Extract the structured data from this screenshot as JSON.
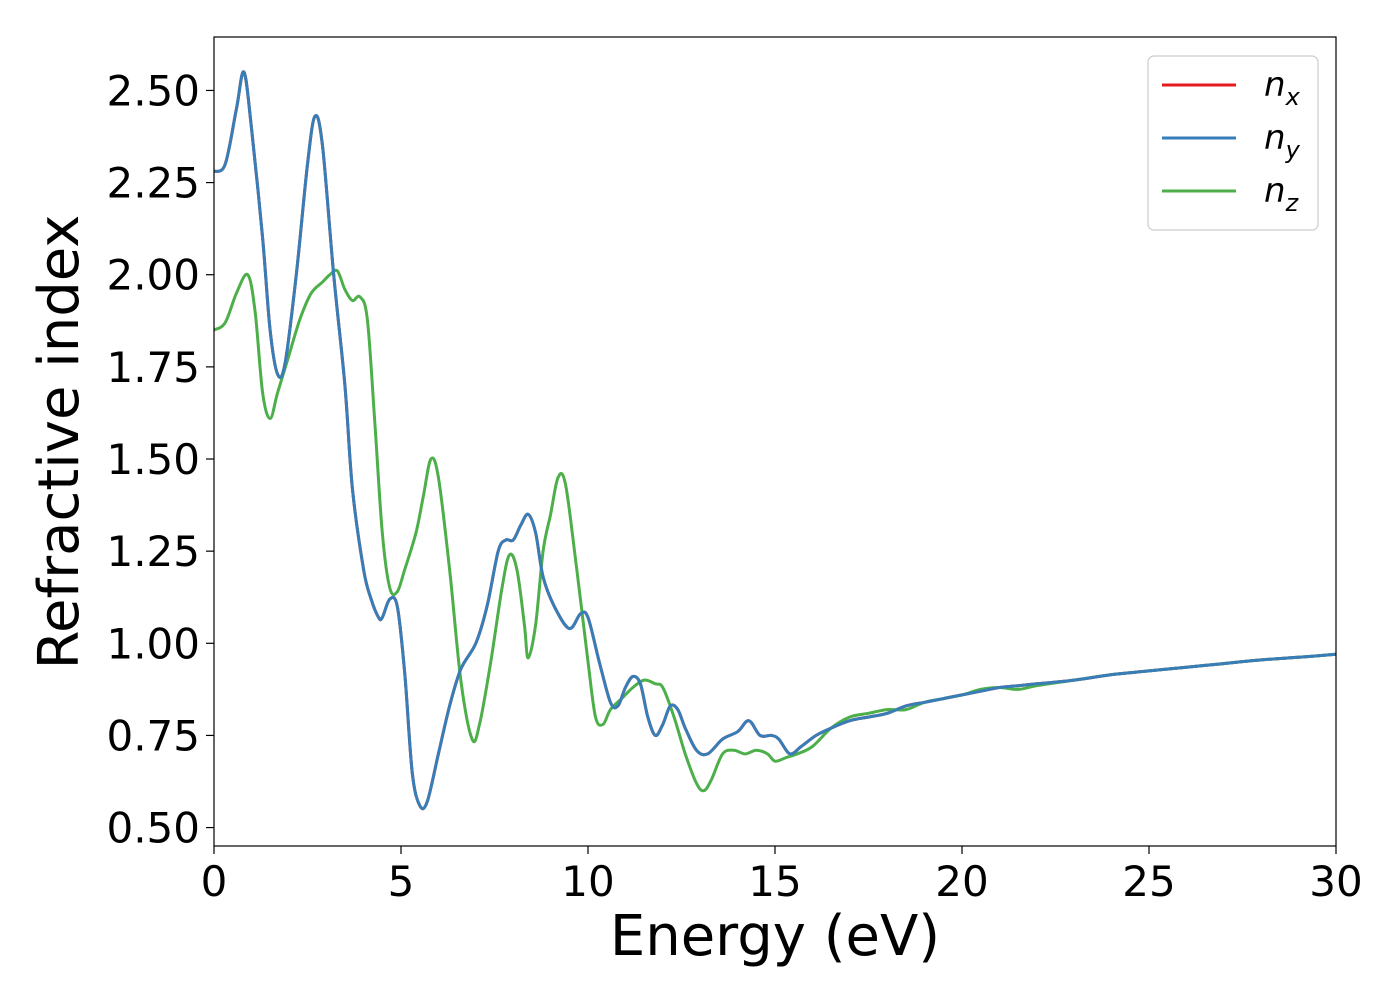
{
  "chart_data": {
    "type": "line",
    "xlabel": "Energy (eV)",
    "ylabel": "Refractive index",
    "xlim": [
      0,
      30
    ],
    "ylim": [
      0.45,
      2.645
    ],
    "xticks": [
      0,
      5,
      10,
      15,
      20,
      25,
      30
    ],
    "xtick_labels": [
      "0",
      "5",
      "10",
      "15",
      "20",
      "25",
      "30"
    ],
    "yticks": [
      0.5,
      0.75,
      1.0,
      1.25,
      1.5,
      1.75,
      2.0,
      2.25,
      2.5
    ],
    "ytick_labels": [
      "0.50",
      "0.75",
      "1.00",
      "1.25",
      "1.50",
      "1.75",
      "2.00",
      "2.25",
      "2.50"
    ],
    "grid": false,
    "legend_position": "top-right",
    "series": [
      {
        "name": "n_x",
        "legend_base": "n",
        "legend_sub": "x",
        "color": "#e41a1c",
        "points": [
          [
            0,
            2.28
          ],
          [
            0.3,
            2.3
          ],
          [
            0.6,
            2.45
          ],
          [
            0.8,
            2.55
          ],
          [
            1.0,
            2.4
          ],
          [
            1.3,
            2.1
          ],
          [
            1.5,
            1.85
          ],
          [
            1.7,
            1.73
          ],
          [
            1.9,
            1.76
          ],
          [
            2.2,
            2.0
          ],
          [
            2.5,
            2.3
          ],
          [
            2.7,
            2.43
          ],
          [
            2.9,
            2.35
          ],
          [
            3.2,
            2.0
          ],
          [
            3.5,
            1.7
          ],
          [
            3.7,
            1.42
          ],
          [
            4.0,
            1.2
          ],
          [
            4.2,
            1.12
          ],
          [
            4.4,
            1.07
          ],
          [
            4.5,
            1.07
          ],
          [
            4.7,
            1.12
          ],
          [
            4.9,
            1.1
          ],
          [
            5.1,
            0.92
          ],
          [
            5.3,
            0.65
          ],
          [
            5.5,
            0.56
          ],
          [
            5.7,
            0.57
          ],
          [
            6.0,
            0.7
          ],
          [
            6.3,
            0.83
          ],
          [
            6.6,
            0.93
          ],
          [
            7.0,
            1.0
          ],
          [
            7.3,
            1.1
          ],
          [
            7.6,
            1.25
          ],
          [
            7.8,
            1.28
          ],
          [
            8.0,
            1.28
          ],
          [
            8.2,
            1.32
          ],
          [
            8.4,
            1.35
          ],
          [
            8.6,
            1.3
          ],
          [
            8.8,
            1.18
          ],
          [
            9.1,
            1.1
          ],
          [
            9.5,
            1.04
          ],
          [
            9.8,
            1.08
          ],
          [
            10.0,
            1.07
          ],
          [
            10.3,
            0.95
          ],
          [
            10.6,
            0.84
          ],
          [
            10.8,
            0.83
          ],
          [
            11.0,
            0.88
          ],
          [
            11.2,
            0.91
          ],
          [
            11.4,
            0.89
          ],
          [
            11.6,
            0.8
          ],
          [
            11.8,
            0.75
          ],
          [
            12.0,
            0.78
          ],
          [
            12.2,
            0.83
          ],
          [
            12.4,
            0.82
          ],
          [
            12.6,
            0.77
          ],
          [
            12.9,
            0.71
          ],
          [
            13.2,
            0.7
          ],
          [
            13.6,
            0.74
          ],
          [
            14.0,
            0.76
          ],
          [
            14.3,
            0.79
          ],
          [
            14.6,
            0.75
          ],
          [
            14.9,
            0.75
          ],
          [
            15.1,
            0.74
          ],
          [
            15.4,
            0.7
          ],
          [
            15.7,
            0.72
          ],
          [
            16.1,
            0.75
          ],
          [
            16.5,
            0.77
          ],
          [
            17.0,
            0.79
          ],
          [
            17.5,
            0.8
          ],
          [
            18.0,
            0.81
          ],
          [
            18.5,
            0.83
          ],
          [
            19.0,
            0.84
          ],
          [
            19.5,
            0.85
          ],
          [
            20.0,
            0.86
          ],
          [
            20.5,
            0.87
          ],
          [
            21.0,
            0.88
          ],
          [
            21.5,
            0.885
          ],
          [
            22.0,
            0.89
          ],
          [
            23.0,
            0.9
          ],
          [
            24.0,
            0.915
          ],
          [
            25.0,
            0.925
          ],
          [
            26.0,
            0.935
          ],
          [
            27.0,
            0.945
          ],
          [
            28.0,
            0.955
          ],
          [
            29.0,
            0.962
          ],
          [
            30.0,
            0.97
          ]
        ]
      },
      {
        "name": "n_y",
        "legend_base": "n",
        "legend_sub": "y",
        "color": "#377eb8",
        "points": [
          [
            0,
            2.28
          ],
          [
            0.3,
            2.3
          ],
          [
            0.6,
            2.45
          ],
          [
            0.8,
            2.55
          ],
          [
            1.0,
            2.4
          ],
          [
            1.3,
            2.1
          ],
          [
            1.5,
            1.85
          ],
          [
            1.7,
            1.73
          ],
          [
            1.9,
            1.76
          ],
          [
            2.2,
            2.0
          ],
          [
            2.5,
            2.3
          ],
          [
            2.7,
            2.43
          ],
          [
            2.9,
            2.35
          ],
          [
            3.2,
            2.0
          ],
          [
            3.5,
            1.7
          ],
          [
            3.7,
            1.42
          ],
          [
            4.0,
            1.2
          ],
          [
            4.2,
            1.12
          ],
          [
            4.4,
            1.07
          ],
          [
            4.5,
            1.07
          ],
          [
            4.7,
            1.12
          ],
          [
            4.9,
            1.1
          ],
          [
            5.1,
            0.92
          ],
          [
            5.3,
            0.65
          ],
          [
            5.5,
            0.56
          ],
          [
            5.7,
            0.57
          ],
          [
            6.0,
            0.7
          ],
          [
            6.3,
            0.83
          ],
          [
            6.6,
            0.93
          ],
          [
            7.0,
            1.0
          ],
          [
            7.3,
            1.1
          ],
          [
            7.6,
            1.25
          ],
          [
            7.8,
            1.28
          ],
          [
            8.0,
            1.28
          ],
          [
            8.2,
            1.32
          ],
          [
            8.4,
            1.35
          ],
          [
            8.6,
            1.3
          ],
          [
            8.8,
            1.18
          ],
          [
            9.1,
            1.1
          ],
          [
            9.5,
            1.04
          ],
          [
            9.8,
            1.08
          ],
          [
            10.0,
            1.07
          ],
          [
            10.3,
            0.95
          ],
          [
            10.6,
            0.84
          ],
          [
            10.8,
            0.83
          ],
          [
            11.0,
            0.88
          ],
          [
            11.2,
            0.91
          ],
          [
            11.4,
            0.89
          ],
          [
            11.6,
            0.8
          ],
          [
            11.8,
            0.75
          ],
          [
            12.0,
            0.78
          ],
          [
            12.2,
            0.83
          ],
          [
            12.4,
            0.82
          ],
          [
            12.6,
            0.77
          ],
          [
            12.9,
            0.71
          ],
          [
            13.2,
            0.7
          ],
          [
            13.6,
            0.74
          ],
          [
            14.0,
            0.76
          ],
          [
            14.3,
            0.79
          ],
          [
            14.6,
            0.75
          ],
          [
            14.9,
            0.75
          ],
          [
            15.1,
            0.74
          ],
          [
            15.4,
            0.7
          ],
          [
            15.7,
            0.72
          ],
          [
            16.1,
            0.75
          ],
          [
            16.5,
            0.77
          ],
          [
            17.0,
            0.79
          ],
          [
            17.5,
            0.8
          ],
          [
            18.0,
            0.81
          ],
          [
            18.5,
            0.83
          ],
          [
            19.0,
            0.84
          ],
          [
            19.5,
            0.85
          ],
          [
            20.0,
            0.86
          ],
          [
            20.5,
            0.87
          ],
          [
            21.0,
            0.88
          ],
          [
            21.5,
            0.885
          ],
          [
            22.0,
            0.89
          ],
          [
            23.0,
            0.9
          ],
          [
            24.0,
            0.915
          ],
          [
            25.0,
            0.925
          ],
          [
            26.0,
            0.935
          ],
          [
            27.0,
            0.945
          ],
          [
            28.0,
            0.955
          ],
          [
            29.0,
            0.962
          ],
          [
            30.0,
            0.97
          ]
        ]
      },
      {
        "name": "n_z",
        "legend_base": "n",
        "legend_sub": "z",
        "color": "#4daf4a",
        "points": [
          [
            0,
            1.85
          ],
          [
            0.3,
            1.87
          ],
          [
            0.6,
            1.95
          ],
          [
            0.9,
            2.0
          ],
          [
            1.1,
            1.9
          ],
          [
            1.3,
            1.68
          ],
          [
            1.5,
            1.61
          ],
          [
            1.7,
            1.68
          ],
          [
            2.0,
            1.78
          ],
          [
            2.3,
            1.88
          ],
          [
            2.6,
            1.95
          ],
          [
            2.9,
            1.98
          ],
          [
            3.1,
            2.0
          ],
          [
            3.3,
            2.01
          ],
          [
            3.5,
            1.96
          ],
          [
            3.7,
            1.93
          ],
          [
            3.9,
            1.94
          ],
          [
            4.1,
            1.88
          ],
          [
            4.3,
            1.6
          ],
          [
            4.5,
            1.3
          ],
          [
            4.7,
            1.15
          ],
          [
            4.9,
            1.14
          ],
          [
            5.1,
            1.2
          ],
          [
            5.4,
            1.3
          ],
          [
            5.6,
            1.4
          ],
          [
            5.8,
            1.5
          ],
          [
            6.0,
            1.45
          ],
          [
            6.3,
            1.2
          ],
          [
            6.6,
            0.9
          ],
          [
            6.9,
            0.74
          ],
          [
            7.1,
            0.78
          ],
          [
            7.4,
            0.95
          ],
          [
            7.7,
            1.15
          ],
          [
            7.9,
            1.24
          ],
          [
            8.1,
            1.2
          ],
          [
            8.3,
            1.05
          ],
          [
            8.4,
            0.96
          ],
          [
            8.6,
            1.05
          ],
          [
            8.8,
            1.25
          ],
          [
            9.0,
            1.35
          ],
          [
            9.2,
            1.45
          ],
          [
            9.4,
            1.43
          ],
          [
            9.7,
            1.2
          ],
          [
            10.0,
            0.95
          ],
          [
            10.2,
            0.8
          ],
          [
            10.4,
            0.78
          ],
          [
            10.6,
            0.82
          ],
          [
            10.9,
            0.85
          ],
          [
            11.2,
            0.88
          ],
          [
            11.5,
            0.9
          ],
          [
            11.8,
            0.89
          ],
          [
            12.0,
            0.88
          ],
          [
            12.3,
            0.8
          ],
          [
            12.6,
            0.7
          ],
          [
            12.9,
            0.62
          ],
          [
            13.1,
            0.6
          ],
          [
            13.3,
            0.63
          ],
          [
            13.6,
            0.7
          ],
          [
            13.9,
            0.71
          ],
          [
            14.2,
            0.7
          ],
          [
            14.5,
            0.71
          ],
          [
            14.8,
            0.7
          ],
          [
            15.0,
            0.68
          ],
          [
            15.3,
            0.69
          ],
          [
            15.6,
            0.7
          ],
          [
            16.0,
            0.72
          ],
          [
            16.5,
            0.77
          ],
          [
            17.0,
            0.8
          ],
          [
            17.5,
            0.81
          ],
          [
            18.0,
            0.82
          ],
          [
            18.5,
            0.82
          ],
          [
            19.0,
            0.84
          ],
          [
            19.5,
            0.85
          ],
          [
            20.0,
            0.86
          ],
          [
            20.5,
            0.875
          ],
          [
            21.0,
            0.88
          ],
          [
            21.5,
            0.875
          ],
          [
            22.0,
            0.885
          ],
          [
            23.0,
            0.9
          ],
          [
            24.0,
            0.915
          ],
          [
            25.0,
            0.925
          ],
          [
            26.0,
            0.935
          ],
          [
            27.0,
            0.945
          ],
          [
            28.0,
            0.955
          ],
          [
            29.0,
            0.962
          ],
          [
            30.0,
            0.97
          ]
        ]
      }
    ]
  }
}
